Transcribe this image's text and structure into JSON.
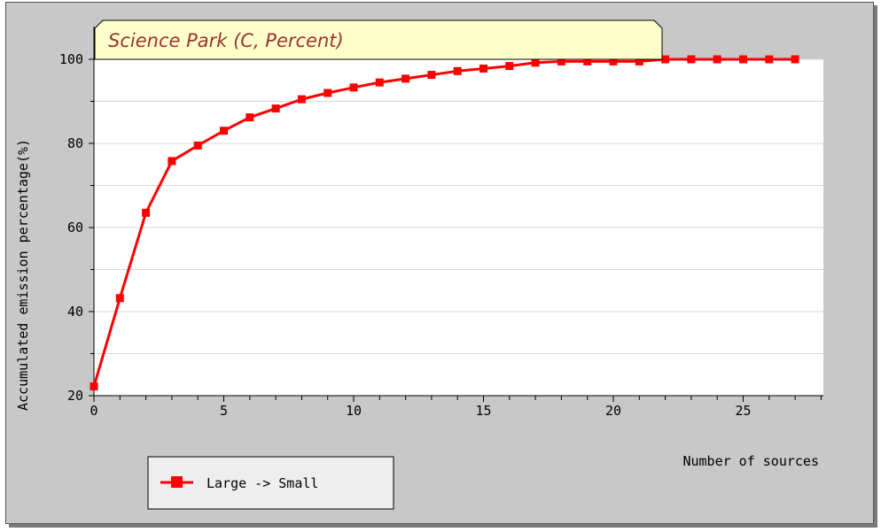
{
  "chart_data": {
    "type": "line",
    "title": "Science Park (C, Percent)",
    "xlabel": "Number of sources",
    "ylabel": "Accumulated emission percentage(%)",
    "xlim": [
      0,
      28
    ],
    "ylim": [
      20,
      100
    ],
    "x_ticks": [
      0,
      5,
      10,
      15,
      20,
      25
    ],
    "y_ticks": [
      20,
      40,
      60,
      80,
      100
    ],
    "grid": "horizontal",
    "legend_position": "bottom-left",
    "series": [
      {
        "name": "Large -> Small",
        "color": "#ff0000",
        "x": [
          0,
          1,
          2,
          3,
          4,
          5,
          6,
          7,
          8,
          9,
          10,
          11,
          12,
          13,
          14,
          15,
          16,
          17,
          18,
          19,
          20,
          21,
          22,
          23,
          24,
          25,
          26,
          27
        ],
        "values": [
          22.2,
          43.2,
          63.5,
          75.8,
          79.5,
          83,
          86.2,
          88.3,
          90.5,
          92,
          93.3,
          94.5,
          95.4,
          96.3,
          97.2,
          97.8,
          98.4,
          99.2,
          99.5,
          99.5,
          99.5,
          99.5,
          100,
          100,
          100,
          100,
          100,
          100
        ]
      }
    ],
    "colors": {
      "background": "#c8c8c8",
      "plot_background": "#ffffff",
      "title_box": "#ffffcc",
      "title_text": "#993333",
      "grid": "#d8d8d8",
      "legend_box": "#eeeeee"
    }
  }
}
